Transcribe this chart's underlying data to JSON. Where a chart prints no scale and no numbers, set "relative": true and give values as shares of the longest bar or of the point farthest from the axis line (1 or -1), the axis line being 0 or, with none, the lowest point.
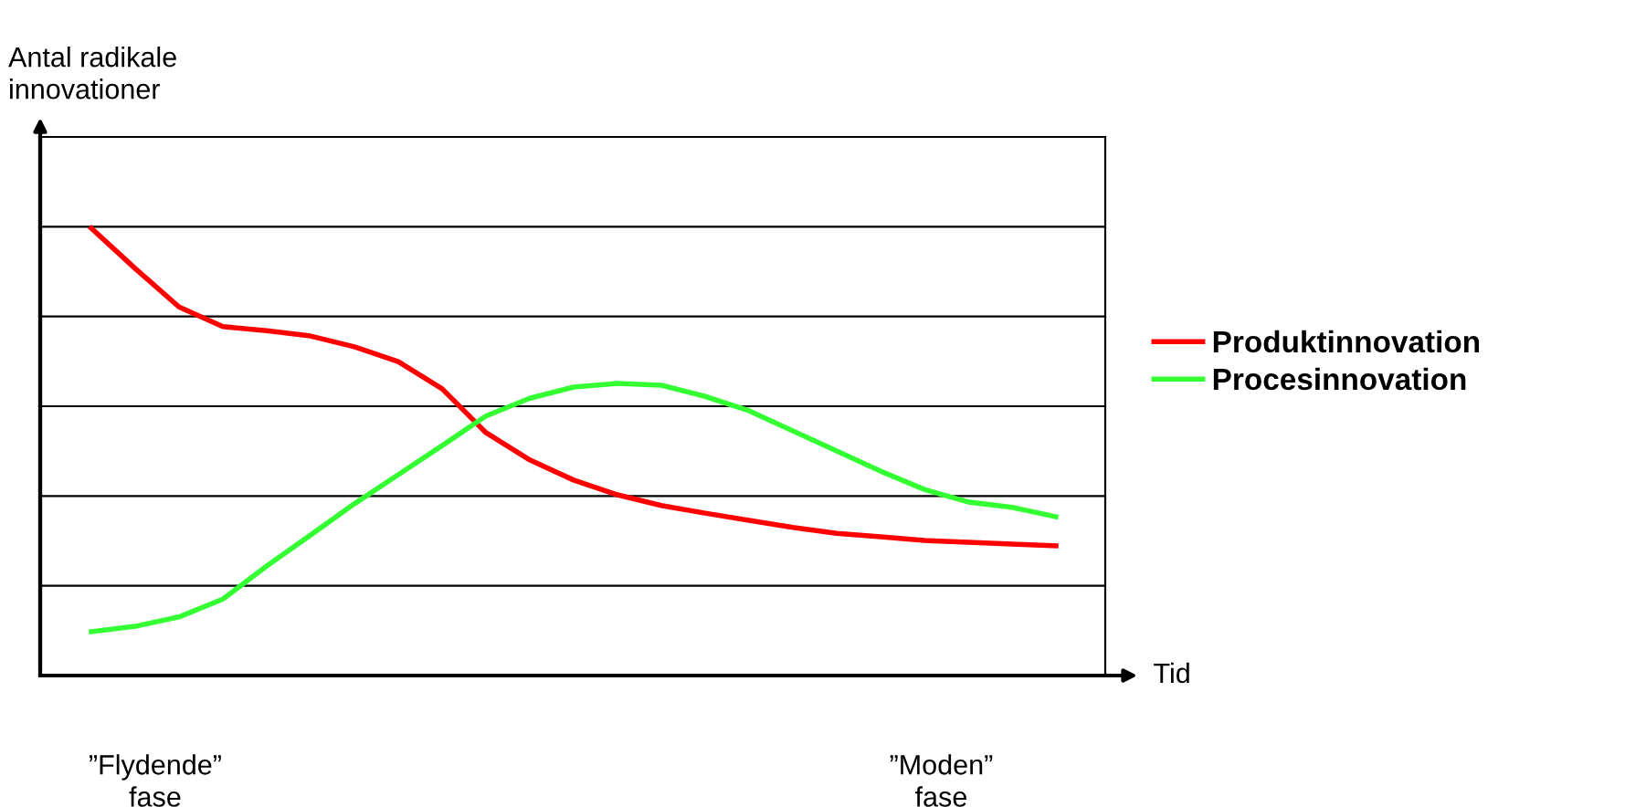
{
  "chart_data": {
    "type": "line",
    "relative": true,
    "ylabel": "Antal radikale\ninnovationer",
    "xlabel": "Tid",
    "categories": [
      null,
      null,
      null,
      null,
      null,
      null,
      null,
      null,
      null,
      null,
      null,
      null,
      null,
      null,
      null,
      null,
      null,
      null,
      null,
      null,
      null,
      null,
      null
    ],
    "series": [
      {
        "name": "Produktinnovation",
        "color": "#ff0000",
        "values": [
          1,
          0.91,
          0.824,
          0.78,
          0.771,
          0.759,
          0.735,
          0.702,
          0.641,
          0.543,
          0.482,
          0.437,
          0.404,
          0.38,
          0.363,
          0.347,
          0.331,
          0.318,
          0.31,
          0.302,
          0.298,
          0.294,
          0.29
        ]
      },
      {
        "name": "Procesinnovation",
        "color": "#33ff33",
        "values": [
          0.098,
          0.11,
          0.131,
          0.171,
          0.245,
          0.314,
          0.384,
          0.449,
          0.514,
          0.58,
          0.62,
          0.645,
          0.653,
          0.649,
          0.624,
          0.592,
          0.547,
          0.502,
          0.457,
          0.416,
          0.388,
          0.376,
          0.355
        ]
      }
    ],
    "annotations": [
      "”Flydende”\nfase",
      "”Moden”\nfase"
    ],
    "grid": "y",
    "legend": "right",
    "marker": "none",
    "line_style": "solid"
  }
}
